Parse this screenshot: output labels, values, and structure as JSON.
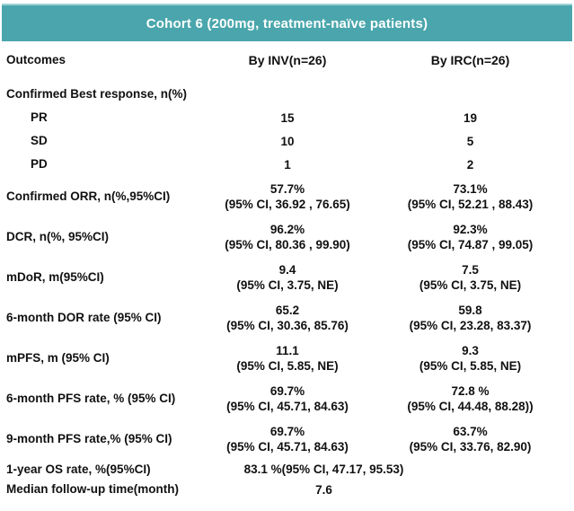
{
  "header": {
    "title": "Cohort 6 (200mg, treatment-naïve patients)"
  },
  "columns": {
    "outcomes": "Outcomes",
    "inv": "By INV(n=26)",
    "irc": "By IRC(n=26)"
  },
  "section_header": "Confirmed Best response, n(%)",
  "rows": [
    {
      "label": "PR",
      "inv": {
        "value": "15"
      },
      "irc": {
        "value": "19"
      }
    },
    {
      "label": "SD",
      "inv": {
        "value": "10"
      },
      "irc": {
        "value": "5"
      }
    },
    {
      "label": "PD",
      "inv": {
        "value": "1"
      },
      "irc": {
        "value": "2"
      }
    },
    {
      "label": "Confirmed ORR, n(%,95%CI)",
      "inv": {
        "value": "57.7%",
        "ci": "(95% CI, 36.92 , 76.65)"
      },
      "irc": {
        "value": "73.1%",
        "ci": "(95% CI, 52.21 , 88.43)"
      }
    },
    {
      "label": "DCR, n(%, 95%CI)",
      "inv": {
        "value": "96.2%",
        "ci": "(95% CI, 80.36 , 99.90)"
      },
      "irc": {
        "value": "92.3%",
        "ci": "(95% CI, 74.87 , 99.05)"
      }
    },
    {
      "label": "mDoR, m(95%CI)",
      "inv": {
        "value": "9.4",
        "ci": "(95% CI, 3.75, NE)"
      },
      "irc": {
        "value": "7.5",
        "ci": "(95% CI, 3.75, NE)"
      }
    },
    {
      "label": "6-month DOR rate (95% CI)",
      "inv": {
        "value": "65.2",
        "ci": "(95% CI, 30.36, 85.76)"
      },
      "irc": {
        "value": "59.8",
        "ci": "(95% CI, 23.28, 83.37)"
      }
    },
    {
      "label": "mPFS, m (95% CI)",
      "inv": {
        "value": "11.1",
        "ci": "(95% CI, 5.85, NE)"
      },
      "irc": {
        "value": "9.3",
        "ci": "(95% CI, 5.85, NE)"
      }
    },
    {
      "label": "6-month PFS rate, % (95% CI)",
      "inv": {
        "value": "69.7%",
        "ci": "(95% CI, 45.71, 84.63)"
      },
      "irc": {
        "value": "72.8 %",
        "ci": "(95% CI, 44.48, 88.28))"
      }
    },
    {
      "label": "9-month PFS rate,% (95% CI)",
      "inv": {
        "value": "69.7%",
        "ci": "(95% CI, 45.71, 84.63)"
      },
      "irc": {
        "value": "63.7%",
        "ci": "(95% CI, 33.76, 82.90)"
      }
    },
    {
      "label": "1-year OS rate, %(95%CI)",
      "span": "83.1 %(95% CI, 47.17, 95.53)"
    },
    {
      "label": "Median follow-up time(month)",
      "span": "7.6"
    }
  ],
  "colors": {
    "header_bg": "#4AA6AC",
    "header_top_border": "#9ED2D6",
    "header_text": "#FFFFFF",
    "body_text": "#111111"
  }
}
